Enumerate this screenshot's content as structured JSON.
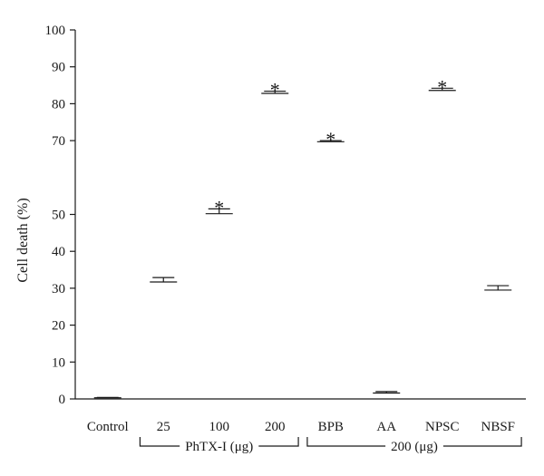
{
  "chart_data": {
    "type": "bar",
    "title": "",
    "xlabel": "",
    "ylabel": "Cell death (%)",
    "ylim": [
      0,
      100
    ],
    "yticks": [
      "0",
      "10",
      "20",
      "30",
      "40",
      "50",
      "70",
      "80",
      "90",
      "100"
    ],
    "categories": [
      "Control",
      "25",
      "100",
      "200",
      "BPB",
      "AA",
      "NPSC",
      "NBSF"
    ],
    "values": [
      0.3,
      31.7,
      50.2,
      82.8,
      69.7,
      1.6,
      83.6,
      29.5
    ],
    "errors": [
      0.1,
      1.2,
      1.3,
      0.6,
      0.3,
      0.4,
      0.6,
      1.2
    ],
    "significant": [
      false,
      false,
      true,
      true,
      true,
      false,
      true,
      false
    ],
    "significance_marker": "*",
    "groups": [
      {
        "label": "PhTX-I (μg)",
        "first": 1,
        "last": 3
      },
      {
        "label": "200 (μg)",
        "first": 4,
        "last": 7
      }
    ],
    "grid": false
  }
}
